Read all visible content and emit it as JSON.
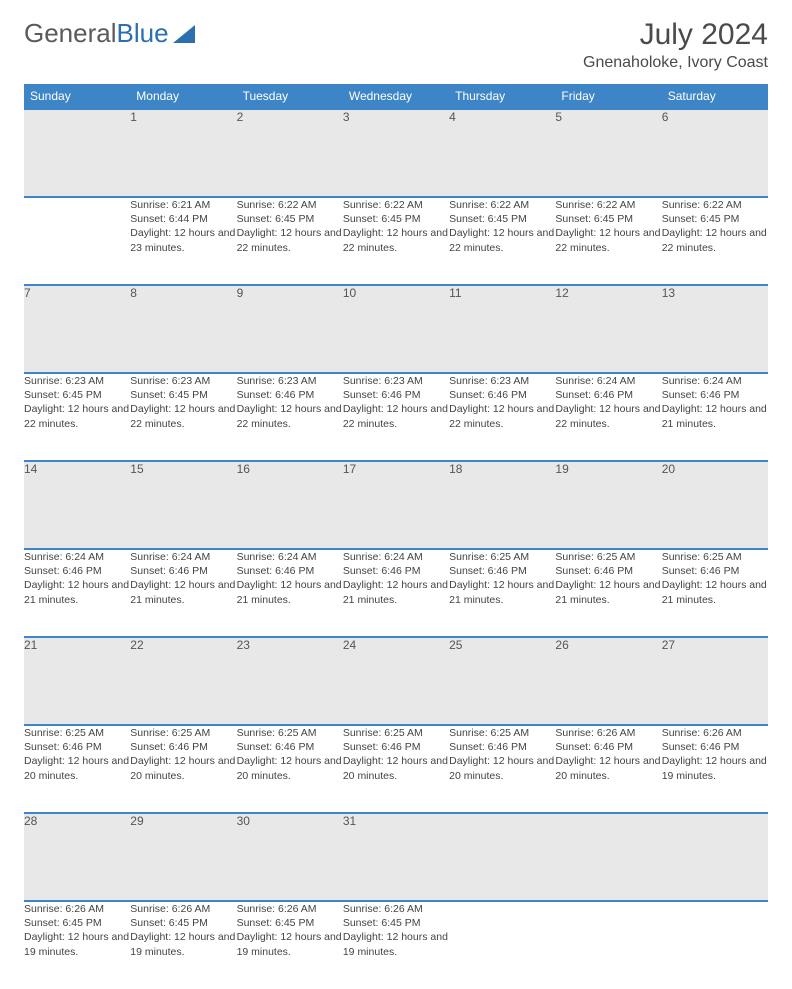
{
  "logo": {
    "text_gray": "General",
    "text_blue": "Blue"
  },
  "header": {
    "month_title": "July 2024",
    "location": "Gnenaholoke, Ivory Coast"
  },
  "colors": {
    "header_bg": "#3d85c6",
    "header_text": "#ffffff",
    "daynum_bg": "#e8e8e8",
    "border": "#3d85c6",
    "text": "#444444"
  },
  "day_headers": [
    "Sunday",
    "Monday",
    "Tuesday",
    "Wednesday",
    "Thursday",
    "Friday",
    "Saturday"
  ],
  "weeks": [
    [
      null,
      {
        "n": "1",
        "sr": "6:21 AM",
        "ss": "6:44 PM",
        "dl": "12 hours and 23 minutes."
      },
      {
        "n": "2",
        "sr": "6:22 AM",
        "ss": "6:45 PM",
        "dl": "12 hours and 22 minutes."
      },
      {
        "n": "3",
        "sr": "6:22 AM",
        "ss": "6:45 PM",
        "dl": "12 hours and 22 minutes."
      },
      {
        "n": "4",
        "sr": "6:22 AM",
        "ss": "6:45 PM",
        "dl": "12 hours and 22 minutes."
      },
      {
        "n": "5",
        "sr": "6:22 AM",
        "ss": "6:45 PM",
        "dl": "12 hours and 22 minutes."
      },
      {
        "n": "6",
        "sr": "6:22 AM",
        "ss": "6:45 PM",
        "dl": "12 hours and 22 minutes."
      }
    ],
    [
      {
        "n": "7",
        "sr": "6:23 AM",
        "ss": "6:45 PM",
        "dl": "12 hours and 22 minutes."
      },
      {
        "n": "8",
        "sr": "6:23 AM",
        "ss": "6:45 PM",
        "dl": "12 hours and 22 minutes."
      },
      {
        "n": "9",
        "sr": "6:23 AM",
        "ss": "6:46 PM",
        "dl": "12 hours and 22 minutes."
      },
      {
        "n": "10",
        "sr": "6:23 AM",
        "ss": "6:46 PM",
        "dl": "12 hours and 22 minutes."
      },
      {
        "n": "11",
        "sr": "6:23 AM",
        "ss": "6:46 PM",
        "dl": "12 hours and 22 minutes."
      },
      {
        "n": "12",
        "sr": "6:24 AM",
        "ss": "6:46 PM",
        "dl": "12 hours and 22 minutes."
      },
      {
        "n": "13",
        "sr": "6:24 AM",
        "ss": "6:46 PM",
        "dl": "12 hours and 21 minutes."
      }
    ],
    [
      {
        "n": "14",
        "sr": "6:24 AM",
        "ss": "6:46 PM",
        "dl": "12 hours and 21 minutes."
      },
      {
        "n": "15",
        "sr": "6:24 AM",
        "ss": "6:46 PM",
        "dl": "12 hours and 21 minutes."
      },
      {
        "n": "16",
        "sr": "6:24 AM",
        "ss": "6:46 PM",
        "dl": "12 hours and 21 minutes."
      },
      {
        "n": "17",
        "sr": "6:24 AM",
        "ss": "6:46 PM",
        "dl": "12 hours and 21 minutes."
      },
      {
        "n": "18",
        "sr": "6:25 AM",
        "ss": "6:46 PM",
        "dl": "12 hours and 21 minutes."
      },
      {
        "n": "19",
        "sr": "6:25 AM",
        "ss": "6:46 PM",
        "dl": "12 hours and 21 minutes."
      },
      {
        "n": "20",
        "sr": "6:25 AM",
        "ss": "6:46 PM",
        "dl": "12 hours and 21 minutes."
      }
    ],
    [
      {
        "n": "21",
        "sr": "6:25 AM",
        "ss": "6:46 PM",
        "dl": "12 hours and 20 minutes."
      },
      {
        "n": "22",
        "sr": "6:25 AM",
        "ss": "6:46 PM",
        "dl": "12 hours and 20 minutes."
      },
      {
        "n": "23",
        "sr": "6:25 AM",
        "ss": "6:46 PM",
        "dl": "12 hours and 20 minutes."
      },
      {
        "n": "24",
        "sr": "6:25 AM",
        "ss": "6:46 PM",
        "dl": "12 hours and 20 minutes."
      },
      {
        "n": "25",
        "sr": "6:25 AM",
        "ss": "6:46 PM",
        "dl": "12 hours and 20 minutes."
      },
      {
        "n": "26",
        "sr": "6:26 AM",
        "ss": "6:46 PM",
        "dl": "12 hours and 20 minutes."
      },
      {
        "n": "27",
        "sr": "6:26 AM",
        "ss": "6:46 PM",
        "dl": "12 hours and 19 minutes."
      }
    ],
    [
      {
        "n": "28",
        "sr": "6:26 AM",
        "ss": "6:45 PM",
        "dl": "12 hours and 19 minutes."
      },
      {
        "n": "29",
        "sr": "6:26 AM",
        "ss": "6:45 PM",
        "dl": "12 hours and 19 minutes."
      },
      {
        "n": "30",
        "sr": "6:26 AM",
        "ss": "6:45 PM",
        "dl": "12 hours and 19 minutes."
      },
      {
        "n": "31",
        "sr": "6:26 AM",
        "ss": "6:45 PM",
        "dl": "12 hours and 19 minutes."
      },
      null,
      null,
      null
    ]
  ],
  "labels": {
    "sunrise": "Sunrise:",
    "sunset": "Sunset:",
    "daylight": "Daylight:"
  }
}
